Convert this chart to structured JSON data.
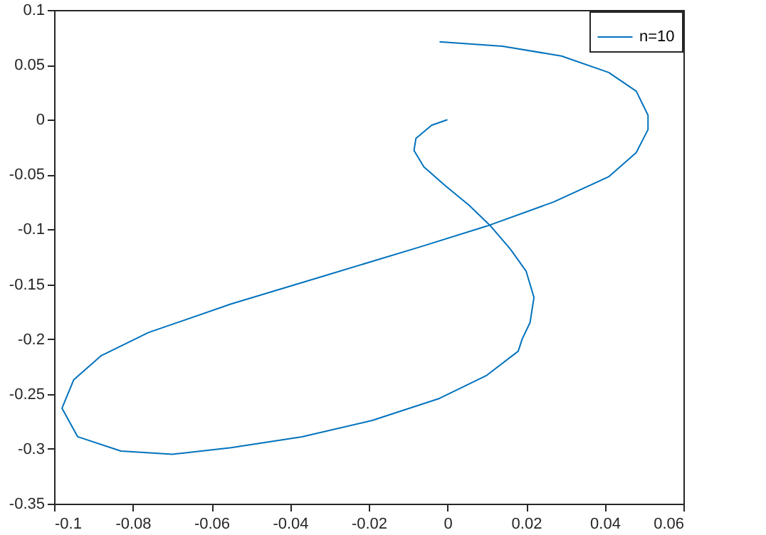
{
  "chart_data": {
    "type": "line",
    "x": [
      0,
      -0.004,
      -0.008,
      -0.0085,
      -0.006,
      -0.0006,
      0.0055,
      0.011,
      0.016,
      0.02,
      0.022,
      0.021,
      0.019,
      0.018,
      0.01,
      -0.002,
      -0.019,
      -0.037,
      -0.055,
      -0.07,
      -0.083,
      -0.094,
      -0.098,
      -0.095,
      -0.088,
      -0.076,
      -0.055,
      -0.031,
      -0.007,
      0.01,
      0.027,
      0.041,
      0.048,
      0.051,
      0.051,
      0.048,
      0.041,
      0.029,
      0.014,
      -0.002
    ],
    "series": [
      {
        "name": "n=10",
        "color": "#0072bd",
        "values": [
          0,
          -0.005,
          -0.017,
          -0.028,
          -0.043,
          -0.06,
          -0.078,
          -0.097,
          -0.118,
          -0.138,
          -0.162,
          -0.185,
          -0.2,
          -0.211,
          -0.233,
          -0.254,
          -0.274,
          -0.289,
          -0.299,
          -0.305,
          -0.302,
          -0.289,
          -0.263,
          -0.237,
          -0.215,
          -0.194,
          -0.168,
          -0.142,
          -0.116,
          -0.097,
          -0.075,
          -0.052,
          -0.03,
          -0.009,
          0.004,
          0.026,
          0.043,
          0.058,
          0.067,
          0.071
        ]
      }
    ],
    "xlim": [
      -0.1,
      0.06
    ],
    "xticks": [
      -0.1,
      -0.08,
      -0.06,
      -0.04,
      -0.02,
      0,
      0.02,
      0.04,
      0.06
    ],
    "ylim": [
      -0.35,
      0.1
    ],
    "yticks": [
      -0.35,
      -0.3,
      -0.25,
      -0.2,
      -0.15,
      -0.1,
      -0.05,
      0,
      0.05,
      0.1
    ],
    "grid": false,
    "legend": "top right",
    "line_style": "solid"
  }
}
